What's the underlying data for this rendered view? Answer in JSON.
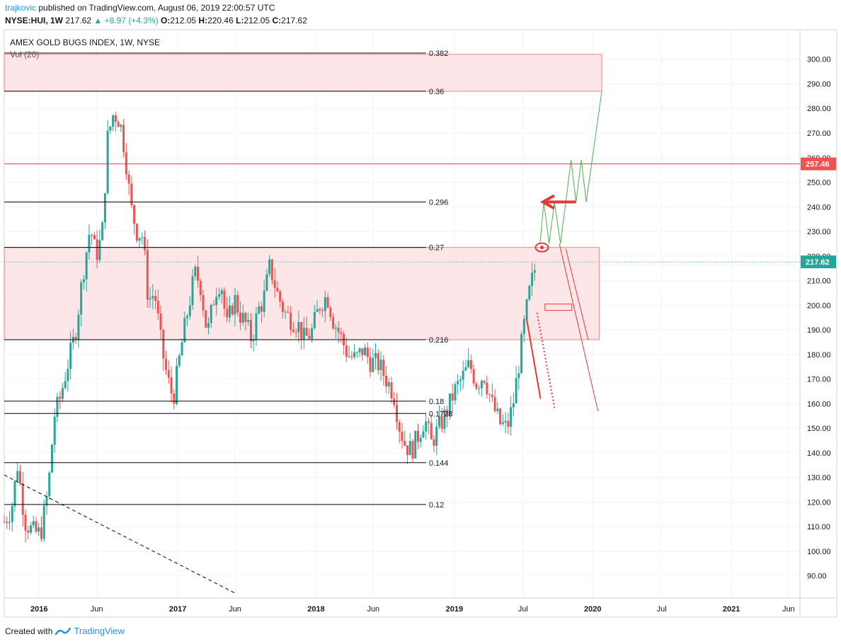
{
  "header": {
    "author": "trajkovic",
    "published_text": "published on TradingView.com, August 06, 2019 22:00:57 UTC",
    "symbol": "NYSE:HUI, 1W",
    "last": "217.62",
    "change": "▲ +8.97 (+4.3%)",
    "o_label": "O:",
    "o": "212.05",
    "h_label": "H:",
    "h": "220.46",
    "l_label": "L:",
    "l": "212.05",
    "c_label": "C:",
    "c": "217.62"
  },
  "legend": {
    "title": "AMEX GOLD BUGS INDEX, 1W, NYSE",
    "volume": "Vol (20)"
  },
  "footer": {
    "created_with": "Created with",
    "brand": "TradingView"
  },
  "colors": {
    "up": "#26a69a",
    "down": "#ef5350",
    "zone_fill": "#fde2e4",
    "zone_border": "#e57373",
    "red_line": "#e53935",
    "green_path": "#4caf50",
    "price_tag_red": "#ef5350",
    "price_tag_green": "#26a69a"
  },
  "chart_data": {
    "type": "candlestick",
    "title": "AMEX GOLD BUGS INDEX, 1W, NYSE",
    "ylim": [
      81,
      312
    ],
    "y_ticks": [
      90,
      100,
      110,
      120,
      130,
      140,
      150,
      160,
      170,
      180,
      190,
      200,
      210,
      220,
      230,
      240,
      250,
      260,
      270,
      280,
      290,
      300
    ],
    "y_tick_labels": [
      "90.00",
      "100.00",
      "110.00",
      "120.00",
      "130.00",
      "140.00",
      "150.00",
      "160.00",
      "170.00",
      "180.00",
      "190.00",
      "200.00",
      "210.00",
      "220.00",
      "230.00",
      "240.00",
      "250.00",
      "260.00",
      "270.00",
      "280.00",
      "290.00",
      "300.00"
    ],
    "x_range": [
      "2015-10-01",
      "2021-07-01"
    ],
    "x_ticks": [
      {
        "date": "2016-01-01",
        "label": "2016"
      },
      {
        "date": "2016-06-01",
        "label": "Jun"
      },
      {
        "date": "2017-01-01",
        "label": "2017"
      },
      {
        "date": "2017-06-01",
        "label": "Jun"
      },
      {
        "date": "2018-01-01",
        "label": "2018"
      },
      {
        "date": "2018-06-01",
        "label": "Jun"
      },
      {
        "date": "2019-01-01",
        "label": "2019"
      },
      {
        "date": "2019-07-01",
        "label": "Jul"
      },
      {
        "date": "2020-01-01",
        "label": "2020"
      },
      {
        "date": "2020-07-01",
        "label": "Jul"
      },
      {
        "date": "2021-01-01",
        "label": "2021"
      },
      {
        "date": "2021-06-01",
        "label": "Jun"
      }
    ],
    "close_path": [
      [
        "2015-10-01",
        112
      ],
      [
        "2015-10-20",
        117
      ],
      [
        "2015-11-05",
        135
      ],
      [
        "2015-11-25",
        112
      ],
      [
        "2015-12-15",
        108
      ],
      [
        "2016-01-05",
        107
      ],
      [
        "2016-01-25",
        125
      ],
      [
        "2016-02-10",
        155
      ],
      [
        "2016-02-25",
        162
      ],
      [
        "2016-03-15",
        175
      ],
      [
        "2016-04-05",
        188
      ],
      [
        "2016-04-25",
        212
      ],
      [
        "2016-05-15",
        232
      ],
      [
        "2016-05-30",
        220
      ],
      [
        "2016-06-15",
        228
      ],
      [
        "2016-06-30",
        268
      ],
      [
        "2016-07-15",
        278
      ],
      [
        "2016-08-01",
        275
      ],
      [
        "2016-08-15",
        262
      ],
      [
        "2016-08-30",
        240
      ],
      [
        "2016-09-15",
        230
      ],
      [
        "2016-10-01",
        228
      ],
      [
        "2016-10-15",
        202
      ],
      [
        "2016-11-01",
        205
      ],
      [
        "2016-11-20",
        182
      ],
      [
        "2016-12-05",
        170
      ],
      [
        "2016-12-20",
        162
      ],
      [
        "2017-01-10",
        183
      ],
      [
        "2017-01-30",
        200
      ],
      [
        "2017-02-15",
        213
      ],
      [
        "2017-03-01",
        209
      ],
      [
        "2017-03-20",
        188
      ],
      [
        "2017-04-10",
        206
      ],
      [
        "2017-04-25",
        210
      ],
      [
        "2017-05-10",
        191
      ],
      [
        "2017-05-30",
        203
      ],
      [
        "2017-06-15",
        196
      ],
      [
        "2017-07-01",
        192
      ],
      [
        "2017-07-15",
        186
      ],
      [
        "2017-08-01",
        198
      ],
      [
        "2017-08-15",
        202
      ],
      [
        "2017-09-01",
        216
      ],
      [
        "2017-09-20",
        205
      ],
      [
        "2017-10-10",
        197
      ],
      [
        "2017-10-30",
        194
      ],
      [
        "2017-11-15",
        192
      ],
      [
        "2017-12-01",
        186
      ],
      [
        "2017-12-20",
        189
      ],
      [
        "2018-01-10",
        200
      ],
      [
        "2018-01-30",
        204
      ],
      [
        "2018-02-15",
        194
      ],
      [
        "2018-03-05",
        188
      ],
      [
        "2018-03-25",
        180
      ],
      [
        "2018-04-15",
        178
      ],
      [
        "2018-05-05",
        182
      ],
      [
        "2018-05-25",
        177
      ],
      [
        "2018-06-15",
        176
      ],
      [
        "2018-07-05",
        170
      ],
      [
        "2018-07-25",
        164
      ],
      [
        "2018-08-10",
        150
      ],
      [
        "2018-08-25",
        143
      ],
      [
        "2018-09-10",
        141
      ],
      [
        "2018-09-30",
        148
      ],
      [
        "2018-10-15",
        154
      ],
      [
        "2018-11-01",
        144
      ],
      [
        "2018-11-20",
        150
      ],
      [
        "2018-12-10",
        156
      ],
      [
        "2019-01-01",
        165
      ],
      [
        "2019-01-20",
        170
      ],
      [
        "2019-02-10",
        176
      ],
      [
        "2019-03-01",
        168
      ],
      [
        "2019-03-20",
        172
      ],
      [
        "2019-04-10",
        160
      ],
      [
        "2019-05-01",
        152
      ],
      [
        "2019-05-20",
        150
      ],
      [
        "2019-06-05",
        160
      ],
      [
        "2019-06-20",
        176
      ],
      [
        "2019-07-05",
        193
      ],
      [
        "2019-07-20",
        207
      ],
      [
        "2019-08-06",
        217.62
      ]
    ],
    "fib_levels": [
      {
        "label": "0.382",
        "value": 302.5
      },
      {
        "label": "0.36",
        "value": 287.0
      },
      {
        "label": "0.296",
        "value": 242.0
      },
      {
        "label": "0.27",
        "value": 223.5
      },
      {
        "label": "0.216",
        "value": 186.0
      },
      {
        "label": "0.18",
        "value": 161.0
      },
      {
        "label": "0.1728",
        "value": 156.0
      },
      {
        "label": "0.144",
        "value": 136.0
      },
      {
        "label": "0.12",
        "value": 119.0
      }
    ],
    "zones": [
      {
        "from_date": "2015-10-01",
        "to_date": "2020-01-25",
        "low": 287,
        "high": 302
      },
      {
        "from_date": "2015-10-01",
        "to_date": "2020-01-18",
        "low": 186,
        "high": 223.5
      }
    ],
    "horizontal_line": {
      "value": 257.46,
      "label": "257.46"
    },
    "last_price": {
      "value": 217.62,
      "label": "217.62"
    },
    "trendline": {
      "from": [
        "2015-10-01",
        131
      ],
      "to": [
        "2017-06-01",
        83
      ]
    },
    "projection_path": [
      [
        "2019-08-15",
        225
      ],
      [
        "2019-08-25",
        242
      ],
      [
        "2019-09-08",
        225
      ],
      [
        "2019-09-22",
        242
      ],
      [
        "2019-10-08",
        225
      ],
      [
        "2019-10-22",
        242
      ],
      [
        "2019-11-05",
        259
      ],
      [
        "2019-11-18",
        242
      ],
      [
        "2019-12-02",
        259
      ],
      [
        "2019-12-15",
        242
      ],
      [
        "2020-01-25",
        287
      ]
    ],
    "projection_down_1": [
      [
        "2019-10-05",
        225
      ],
      [
        "2020-01-15",
        157
      ]
    ],
    "projection_down_2": [
      [
        "2019-10-22",
        223
      ],
      [
        "2019-12-20",
        186
      ]
    ]
  }
}
